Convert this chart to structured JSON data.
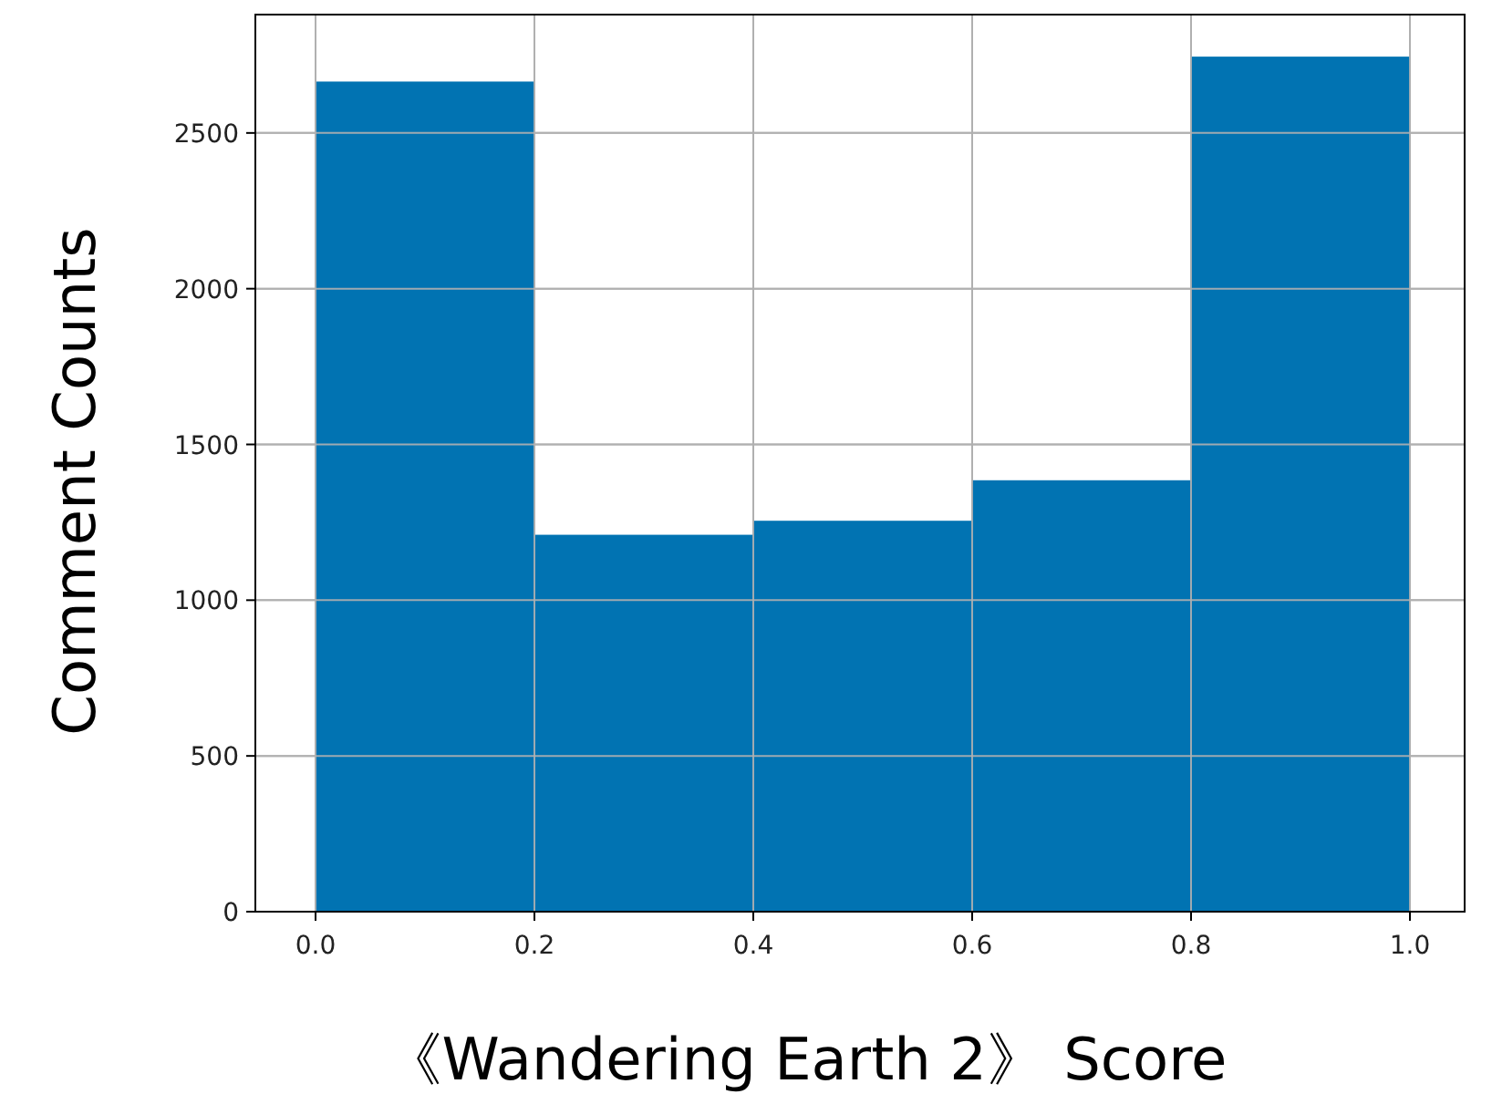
{
  "chart_data": {
    "type": "histogram",
    "xlabel": "《Wandering Earth 2》 Score",
    "ylabel": "Comment Counts",
    "bins": [
      0,
      0.2,
      0.4,
      0.6,
      0.8,
      1.0
    ],
    "values": [
      2665,
      1210,
      1255,
      1385,
      2745
    ],
    "color": "#0173b2",
    "xlim": [
      -0.055,
      1.05
    ],
    "ylim": [
      0,
      2880
    ],
    "xticks": [
      {
        "value": 0,
        "label": "0.0"
      },
      {
        "value": 0.2,
        "label": "0.2"
      },
      {
        "value": 0.4,
        "label": "0.4"
      },
      {
        "value": 0.6,
        "label": "0.6"
      },
      {
        "value": 0.8,
        "label": "0.8"
      },
      {
        "value": 1.0,
        "label": "1.0"
      }
    ],
    "yticks": [
      0,
      500,
      1000,
      1500,
      2000,
      2500
    ],
    "grid": true
  }
}
